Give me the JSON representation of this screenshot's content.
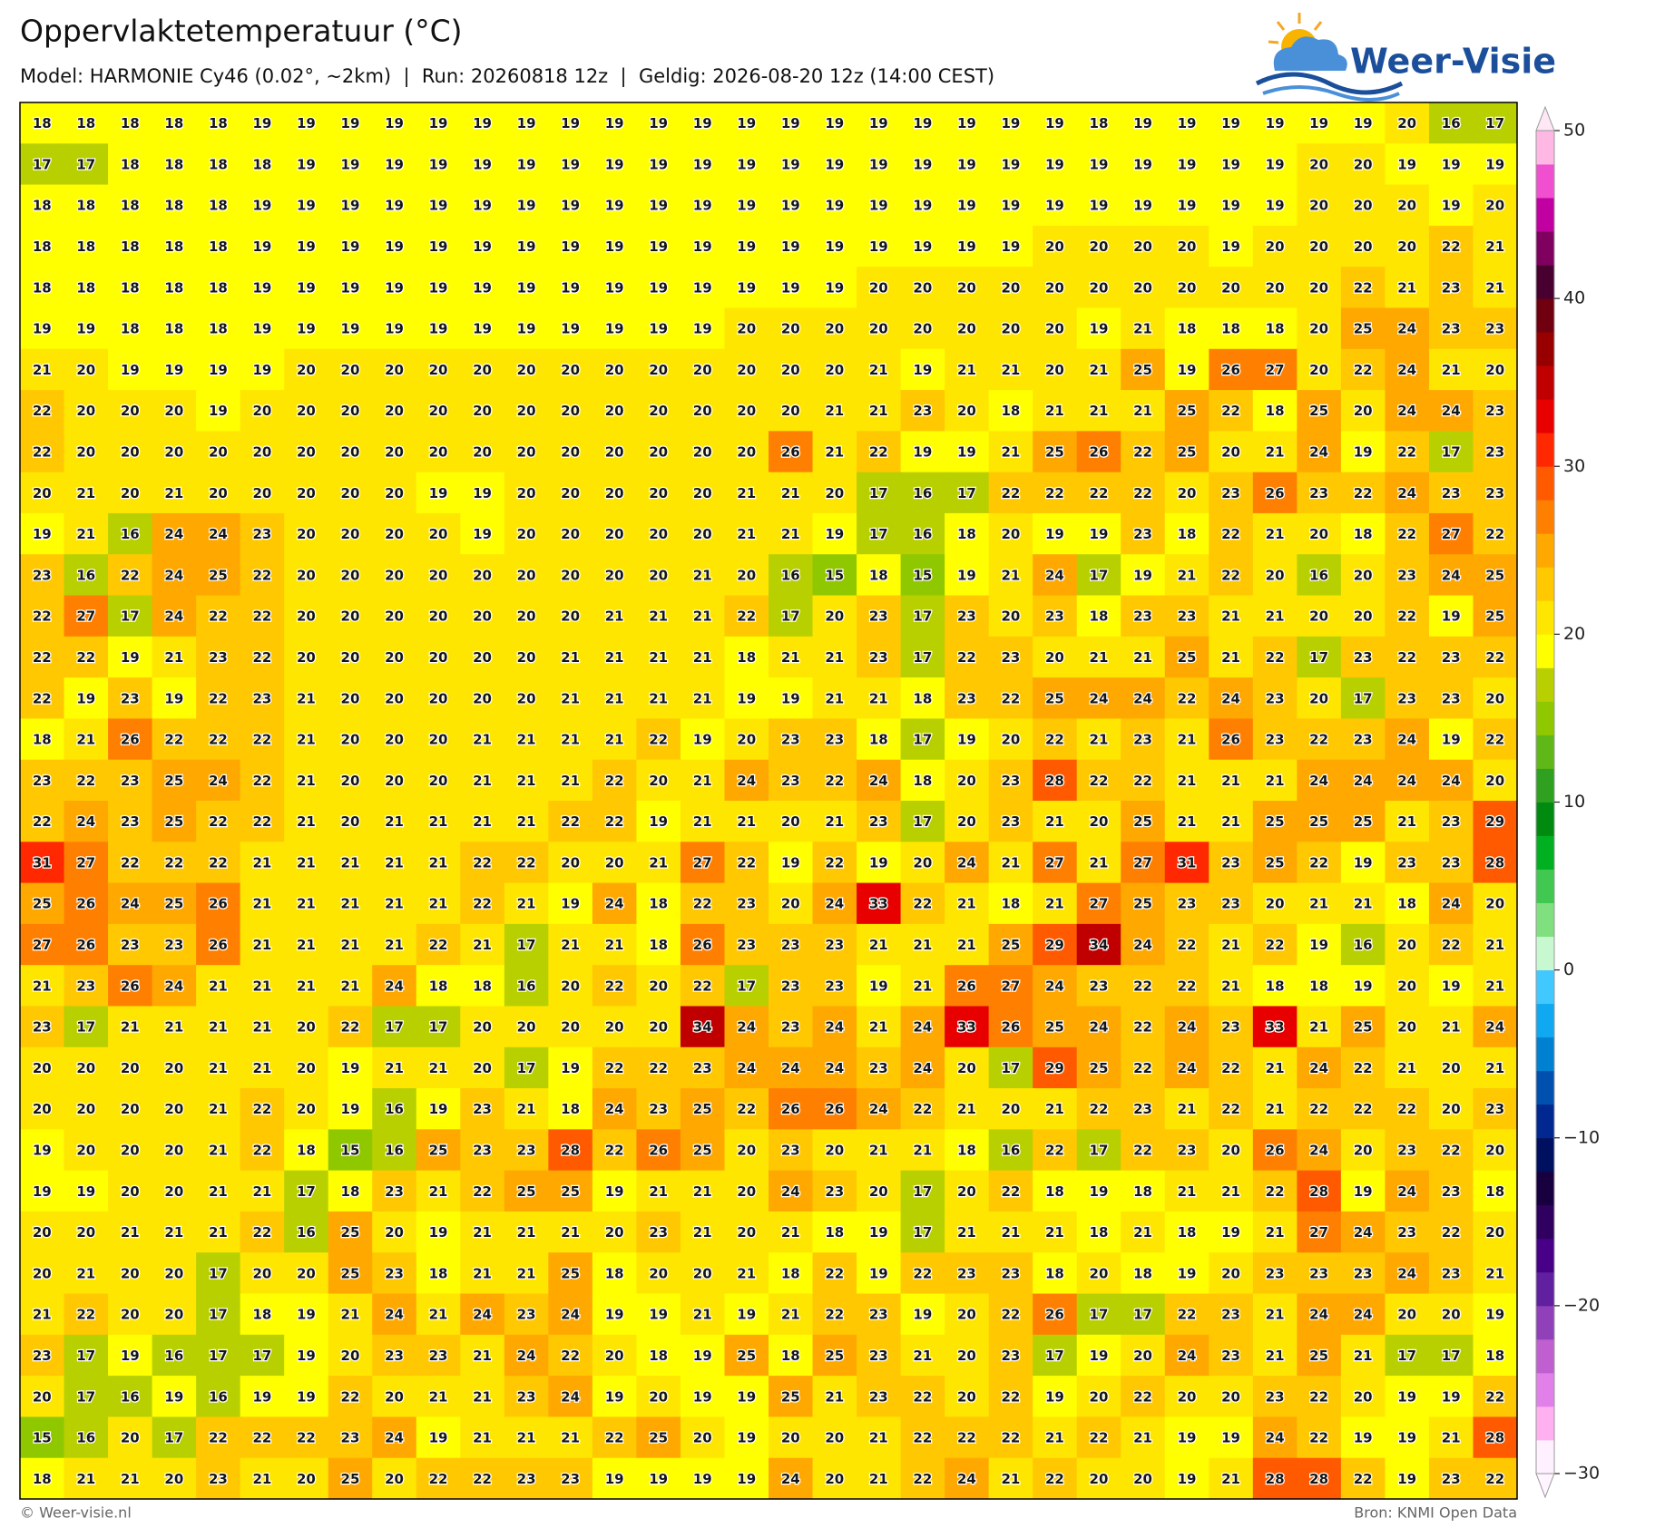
{
  "header": {
    "title": "Oppervlaktetemperatuur (°C)",
    "subtitle": "Model: HARMONIE Cy46 (0.02°, ~2km)  |  Run: 20260818 12z  |  Geldig: 2026-08-20 12z (14:00 CEST)",
    "logo": "Weer-Visie"
  },
  "map": {
    "values": [
      [
        18,
        18,
        18,
        18,
        18,
        19,
        19,
        19,
        19,
        19,
        19,
        19,
        19,
        19,
        19,
        19,
        19,
        19,
        19,
        19,
        19,
        19,
        19,
        19,
        18,
        19,
        19,
        19,
        19,
        19,
        19,
        20,
        16,
        17
      ],
      [
        17,
        17,
        18,
        18,
        18,
        18,
        19,
        19,
        19,
        19,
        19,
        19,
        19,
        19,
        19,
        19,
        19,
        19,
        19,
        19,
        19,
        19,
        19,
        19,
        19,
        19,
        19,
        19,
        19,
        20,
        20,
        19,
        19,
        19
      ],
      [
        18,
        18,
        18,
        18,
        18,
        19,
        19,
        19,
        19,
        19,
        19,
        19,
        19,
        19,
        19,
        19,
        19,
        19,
        19,
        19,
        19,
        19,
        19,
        19,
        19,
        19,
        19,
        19,
        19,
        20,
        20,
        20,
        19,
        20
      ],
      [
        18,
        18,
        18,
        18,
        18,
        19,
        19,
        19,
        19,
        19,
        19,
        19,
        19,
        19,
        19,
        19,
        19,
        19,
        19,
        19,
        19,
        19,
        19,
        20,
        20,
        20,
        20,
        19,
        20,
        20,
        20,
        20,
        22,
        21
      ],
      [
        18,
        18,
        18,
        18,
        18,
        19,
        19,
        19,
        19,
        19,
        19,
        19,
        19,
        19,
        19,
        19,
        19,
        19,
        19,
        20,
        20,
        20,
        20,
        20,
        20,
        20,
        20,
        20,
        20,
        20,
        22,
        21,
        23,
        21
      ],
      [
        19,
        19,
        18,
        18,
        18,
        19,
        19,
        19,
        19,
        19,
        19,
        19,
        19,
        19,
        19,
        19,
        20,
        20,
        20,
        20,
        20,
        20,
        20,
        20,
        19,
        21,
        18,
        18,
        18,
        20,
        25,
        24,
        23,
        23
      ],
      [
        21,
        20,
        19,
        19,
        19,
        19,
        20,
        20,
        20,
        20,
        20,
        20,
        20,
        20,
        20,
        20,
        20,
        20,
        20,
        21,
        19,
        21,
        21,
        20,
        21,
        25,
        19,
        26,
        27,
        20,
        22,
        24,
        21,
        20
      ],
      [
        22,
        20,
        20,
        20,
        19,
        20,
        20,
        20,
        20,
        20,
        20,
        20,
        20,
        20,
        20,
        20,
        20,
        20,
        21,
        21,
        23,
        20,
        18,
        21,
        21,
        21,
        25,
        22,
        18,
        25,
        20,
        24,
        24,
        23
      ],
      [
        22,
        20,
        20,
        20,
        20,
        20,
        20,
        20,
        20,
        20,
        20,
        20,
        20,
        20,
        20,
        20,
        20,
        26,
        21,
        22,
        19,
        19,
        21,
        25,
        26,
        22,
        25,
        20,
        21,
        24,
        19,
        22,
        17,
        23
      ],
      [
        20,
        21,
        20,
        21,
        20,
        20,
        20,
        20,
        20,
        19,
        19,
        20,
        20,
        20,
        20,
        20,
        21,
        21,
        20,
        17,
        16,
        17,
        22,
        22,
        22,
        22,
        20,
        23,
        26,
        23,
        22,
        24,
        23,
        23
      ],
      [
        19,
        21,
        16,
        24,
        24,
        23,
        20,
        20,
        20,
        20,
        19,
        20,
        20,
        20,
        20,
        20,
        21,
        21,
        19,
        17,
        16,
        18,
        20,
        19,
        19,
        23,
        18,
        22,
        21,
        20,
        18,
        22,
        27,
        22
      ],
      [
        23,
        16,
        22,
        24,
        25,
        22,
        20,
        20,
        20,
        20,
        20,
        20,
        20,
        20,
        20,
        21,
        20,
        16,
        15,
        18,
        15,
        19,
        21,
        24,
        17,
        19,
        21,
        22,
        20,
        16,
        20,
        23,
        24,
        25
      ],
      [
        22,
        27,
        17,
        24,
        22,
        22,
        20,
        20,
        20,
        20,
        20,
        20,
        20,
        21,
        21,
        21,
        22,
        17,
        20,
        23,
        17,
        23,
        20,
        23,
        18,
        23,
        23,
        21,
        21,
        20,
        20,
        22,
        19,
        25
      ],
      [
        22,
        22,
        19,
        21,
        23,
        22,
        20,
        20,
        20,
        20,
        20,
        20,
        21,
        21,
        21,
        21,
        18,
        21,
        21,
        23,
        17,
        22,
        23,
        20,
        21,
        21,
        25,
        21,
        22,
        17,
        23,
        22,
        23,
        22
      ],
      [
        22,
        19,
        23,
        19,
        22,
        23,
        21,
        20,
        20,
        20,
        20,
        20,
        21,
        21,
        21,
        21,
        19,
        19,
        21,
        21,
        18,
        23,
        22,
        25,
        24,
        24,
        22,
        24,
        23,
        20,
        17,
        23,
        23,
        20
      ],
      [
        18,
        21,
        26,
        22,
        22,
        22,
        21,
        20,
        20,
        20,
        21,
        21,
        21,
        21,
        22,
        19,
        20,
        23,
        23,
        18,
        17,
        19,
        20,
        22,
        21,
        23,
        21,
        26,
        23,
        22,
        23,
        24,
        19,
        22
      ],
      [
        23,
        22,
        23,
        25,
        24,
        22,
        21,
        20,
        20,
        20,
        21,
        21,
        21,
        22,
        20,
        21,
        24,
        23,
        22,
        24,
        18,
        20,
        23,
        28,
        22,
        22,
        21,
        21,
        21,
        24,
        24,
        24,
        24,
        20
      ],
      [
        22,
        24,
        23,
        25,
        22,
        22,
        21,
        20,
        21,
        21,
        21,
        21,
        22,
        22,
        19,
        21,
        21,
        20,
        21,
        23,
        17,
        20,
        23,
        21,
        20,
        25,
        21,
        21,
        25,
        25,
        25,
        21,
        23,
        29
      ],
      [
        31,
        27,
        22,
        22,
        22,
        21,
        21,
        21,
        21,
        21,
        22,
        22,
        20,
        20,
        21,
        27,
        22,
        19,
        22,
        19,
        20,
        24,
        21,
        27,
        21,
        27,
        31,
        23,
        25,
        22,
        19,
        23,
        23,
        28
      ],
      [
        25,
        26,
        24,
        25,
        26,
        21,
        21,
        21,
        21,
        21,
        22,
        21,
        19,
        24,
        18,
        22,
        23,
        20,
        24,
        33,
        22,
        21,
        18,
        21,
        27,
        25,
        23,
        23,
        20,
        21,
        21,
        18,
        24,
        20
      ],
      [
        27,
        26,
        23,
        23,
        26,
        21,
        21,
        21,
        21,
        22,
        21,
        17,
        21,
        21,
        18,
        26,
        23,
        23,
        23,
        21,
        21,
        21,
        25,
        29,
        34,
        24,
        22,
        21,
        22,
        19,
        16,
        20,
        22,
        21
      ],
      [
        21,
        23,
        26,
        24,
        21,
        21,
        21,
        21,
        24,
        18,
        18,
        16,
        20,
        22,
        20,
        22,
        17,
        23,
        23,
        19,
        21,
        26,
        27,
        24,
        23,
        22,
        22,
        21,
        18,
        18,
        19,
        20,
        19,
        21
      ],
      [
        23,
        17,
        21,
        21,
        21,
        21,
        20,
        22,
        17,
        17,
        20,
        20,
        20,
        20,
        20,
        34,
        24,
        23,
        24,
        21,
        24,
        33,
        26,
        25,
        24,
        22,
        24,
        23,
        33,
        21,
        25,
        20,
        21,
        24
      ],
      [
        20,
        20,
        20,
        20,
        21,
        21,
        20,
        19,
        21,
        21,
        20,
        17,
        19,
        22,
        22,
        23,
        24,
        24,
        24,
        23,
        24,
        20,
        17,
        29,
        25,
        22,
        24,
        22,
        21,
        24,
        22,
        21,
        20,
        21
      ],
      [
        20,
        20,
        20,
        20,
        21,
        22,
        20,
        19,
        16,
        19,
        23,
        21,
        18,
        24,
        23,
        25,
        22,
        26,
        26,
        24,
        22,
        21,
        20,
        21,
        22,
        23,
        21,
        22,
        21,
        22,
        22,
        22,
        20,
        23
      ],
      [
        19,
        20,
        20,
        20,
        21,
        22,
        18,
        15,
        16,
        25,
        23,
        23,
        28,
        22,
        26,
        25,
        20,
        23,
        20,
        21,
        21,
        18,
        16,
        22,
        17,
        22,
        23,
        20,
        26,
        24,
        20,
        23,
        22,
        20
      ],
      [
        19,
        19,
        20,
        20,
        21,
        21,
        17,
        18,
        23,
        21,
        22,
        25,
        25,
        19,
        21,
        21,
        20,
        24,
        23,
        20,
        17,
        20,
        22,
        18,
        19,
        18,
        21,
        21,
        22,
        28,
        19,
        24,
        23,
        18
      ],
      [
        20,
        20,
        21,
        21,
        21,
        22,
        16,
        25,
        20,
        19,
        21,
        21,
        21,
        20,
        23,
        21,
        20,
        21,
        18,
        19,
        17,
        21,
        21,
        21,
        18,
        21,
        18,
        19,
        21,
        27,
        24,
        23,
        22,
        20
      ],
      [
        20,
        21,
        20,
        20,
        17,
        20,
        20,
        25,
        23,
        18,
        21,
        21,
        25,
        18,
        20,
        20,
        21,
        18,
        22,
        19,
        22,
        23,
        23,
        18,
        20,
        18,
        19,
        20,
        23,
        23,
        23,
        24,
        23,
        21
      ],
      [
        21,
        22,
        20,
        20,
        17,
        18,
        19,
        21,
        24,
        21,
        24,
        23,
        24,
        19,
        19,
        21,
        19,
        21,
        22,
        23,
        19,
        20,
        22,
        26,
        17,
        17,
        22,
        23,
        21,
        24,
        24,
        20,
        20,
        19
      ],
      [
        23,
        17,
        19,
        16,
        17,
        17,
        19,
        20,
        23,
        23,
        21,
        24,
        22,
        20,
        18,
        19,
        25,
        18,
        25,
        23,
        21,
        20,
        23,
        17,
        19,
        20,
        24,
        23,
        21,
        25,
        21,
        17,
        17,
        18
      ],
      [
        20,
        17,
        16,
        19,
        16,
        19,
        19,
        22,
        20,
        21,
        21,
        23,
        24,
        19,
        20,
        19,
        19,
        25,
        21,
        23,
        22,
        20,
        22,
        19,
        20,
        22,
        20,
        20,
        23,
        22,
        20,
        19,
        19,
        22
      ],
      [
        15,
        16,
        20,
        17,
        22,
        22,
        22,
        23,
        24,
        19,
        21,
        21,
        21,
        22,
        25,
        20,
        19,
        20,
        20,
        21,
        22,
        22,
        22,
        21,
        22,
        21,
        19,
        19,
        24,
        22,
        19,
        19,
        21,
        28
      ],
      [
        18,
        21,
        21,
        20,
        23,
        21,
        20,
        25,
        20,
        22,
        22,
        23,
        23,
        19,
        19,
        19,
        19,
        24,
        20,
        21,
        22,
        24,
        21,
        22,
        20,
        20,
        19,
        21,
        28,
        28,
        22,
        19,
        23,
        22
      ]
    ]
  },
  "colorbar": {
    "lim": [
      -30,
      50
    ],
    "ticks": [
      {
        "value": -30,
        "label": "−30"
      },
      {
        "value": -20,
        "label": "−20"
      },
      {
        "value": -10,
        "label": "−10"
      },
      0,
      10,
      20,
      30,
      40,
      50
    ],
    "colors": [
      "#fff0ff",
      "#ffb0f0",
      "#e080e8",
      "#c060d0",
      "#9040b8",
      "#6020a0",
      "#480088",
      "#300060",
      "#180040",
      "#001060",
      "#002890",
      "#0050b0",
      "#0080d0",
      "#10a8f0",
      "#40c8ff",
      "#c8f8d0",
      "#80e080",
      "#40c850",
      "#00b020",
      "#008a10",
      "#30a020",
      "#60b818",
      "#90c800",
      "#b8d000",
      "#ffff00",
      "#ffe600",
      "#ffc800",
      "#ffa800",
      "#ff8000",
      "#ff5a00",
      "#ff2800",
      "#e80000",
      "#c00000",
      "#980000",
      "#700010",
      "#480030",
      "#800060",
      "#c000a0",
      "#f050d0",
      "#ffb8e4"
    ]
  },
  "footer": {
    "left": "© Weer-visie.nl",
    "right": "Bron: KNMI Open Data"
  }
}
